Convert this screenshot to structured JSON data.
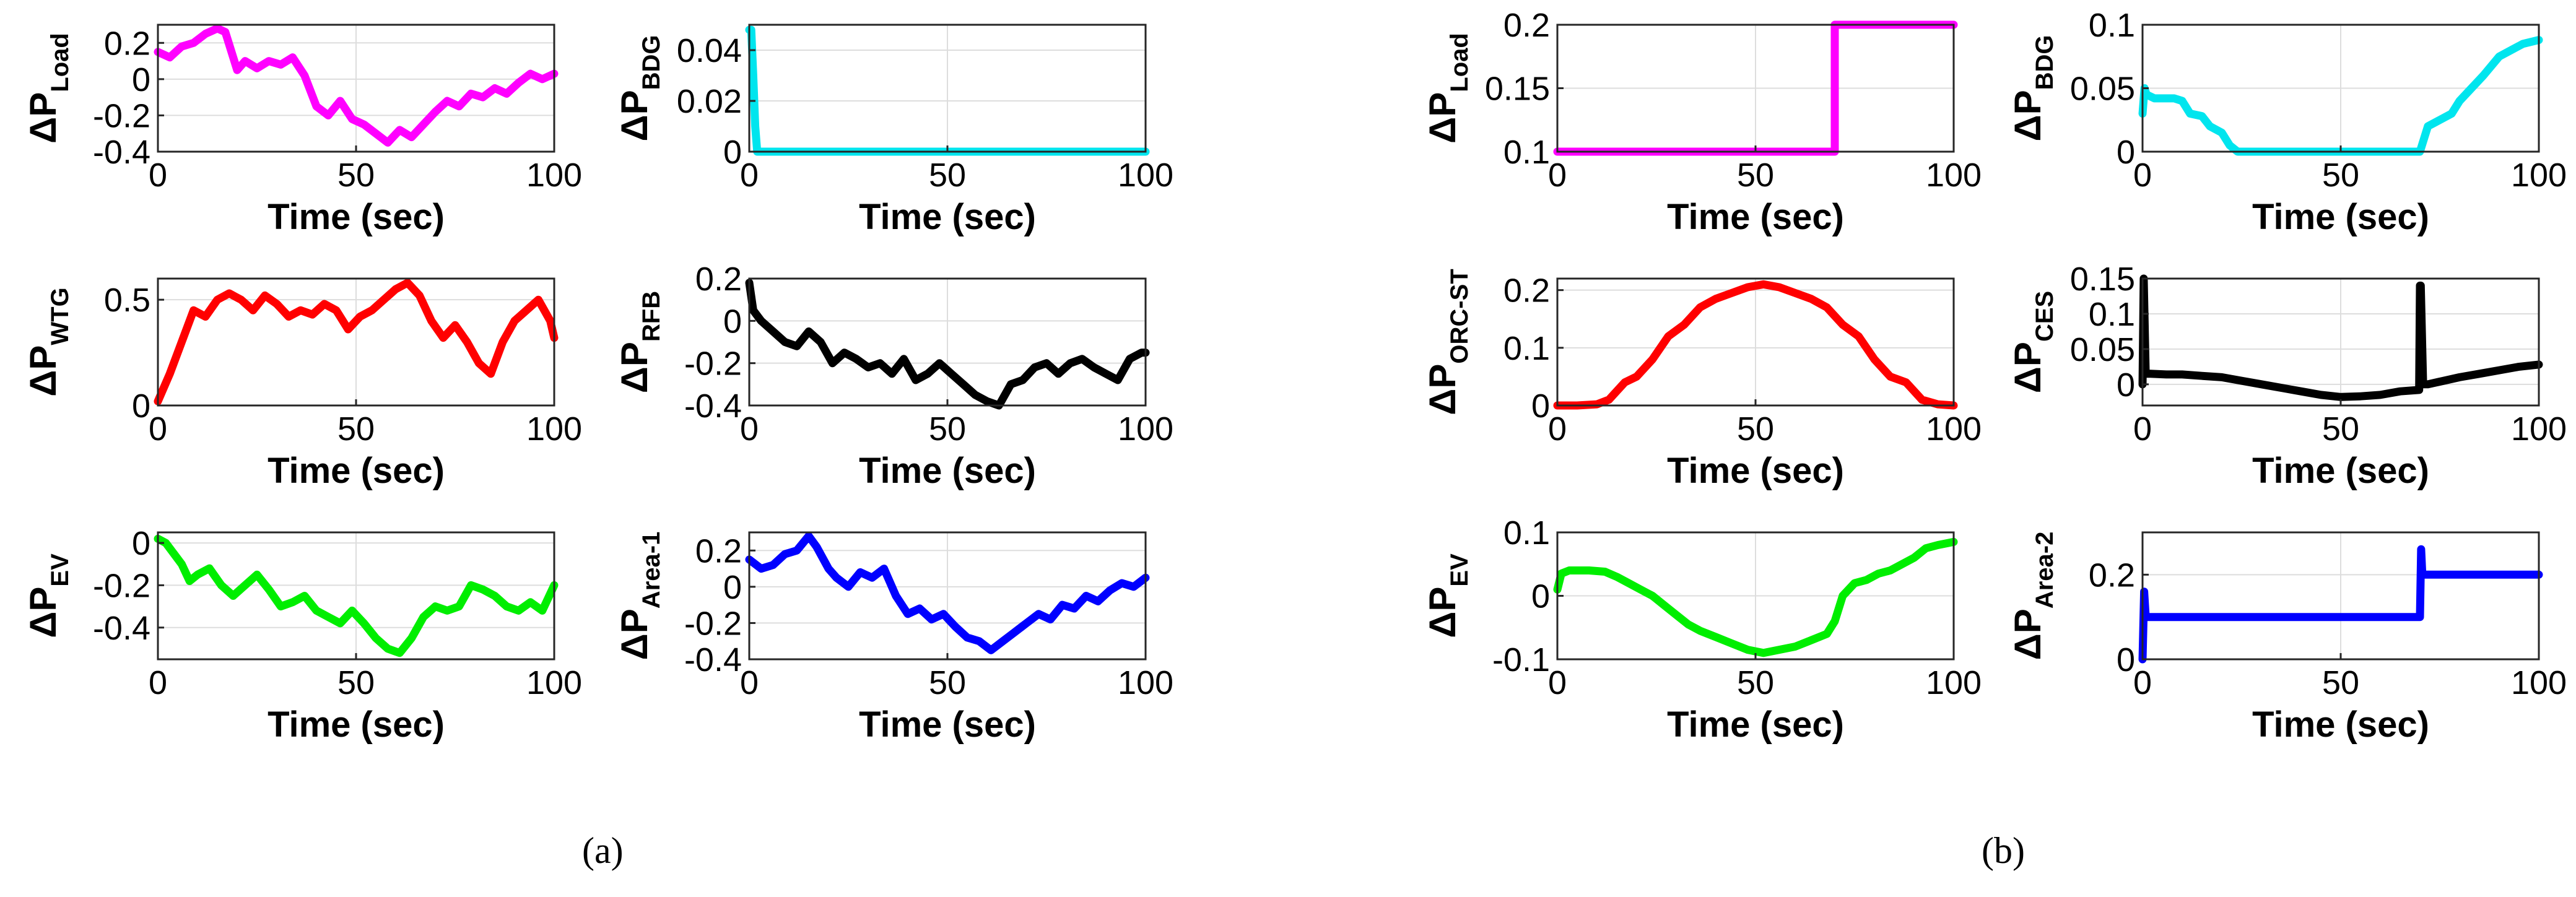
{
  "panel_labels": {
    "a": "(a)",
    "b": "(b)"
  },
  "chart_data": [
    {
      "id": "a1",
      "type": "line",
      "title": "",
      "color": "#ff00ff",
      "ylabel_main": "ΔP",
      "ylabel_sub": "Load",
      "xlabel": "Time (sec)",
      "xlim": [
        0,
        100
      ],
      "ylim": [
        -0.4,
        0.3
      ],
      "xticks": [
        "0",
        "50",
        "100"
      ],
      "xtick_values": [
        0,
        50,
        100
      ],
      "yticks": [
        "0.2",
        "0",
        "-0.2",
        "-0.4"
      ],
      "ytick_values": [
        0.2,
        0,
        -0.2,
        -0.4
      ],
      "x": [
        0,
        3,
        6,
        9,
        12,
        15,
        17,
        20,
        22,
        25,
        28,
        31,
        34,
        37,
        40,
        43,
        46,
        49,
        52,
        55,
        58,
        61,
        64,
        67,
        70,
        73,
        76,
        79,
        82,
        85,
        88,
        91,
        94,
        97,
        100
      ],
      "y": [
        0.15,
        0.12,
        0.18,
        0.2,
        0.25,
        0.28,
        0.26,
        0.05,
        0.1,
        0.06,
        0.1,
        0.08,
        0.12,
        0.02,
        -0.15,
        -0.2,
        -0.12,
        -0.22,
        -0.25,
        -0.3,
        -0.35,
        -0.28,
        -0.32,
        -0.25,
        -0.18,
        -0.12,
        -0.15,
        -0.08,
        -0.1,
        -0.05,
        -0.08,
        -0.02,
        0.03,
        0.0,
        0.03
      ]
    },
    {
      "id": "a2",
      "type": "line",
      "title": "",
      "color": "#00e5ee",
      "ylabel_main": "ΔP",
      "ylabel_sub": "BDG",
      "xlabel": "Time (sec)",
      "xlim": [
        0,
        100
      ],
      "ylim": [
        0,
        0.05
      ],
      "xticks": [
        "0",
        "50",
        "100"
      ],
      "xtick_values": [
        0,
        50,
        100
      ],
      "yticks": [
        "0.04",
        "0.02",
        "0"
      ],
      "ytick_values": [
        0.04,
        0.02,
        0
      ],
      "x": [
        0,
        0.5,
        1,
        1.5,
        2,
        100
      ],
      "y": [
        0.048,
        0.048,
        0.03,
        0.01,
        0,
        0
      ]
    },
    {
      "id": "a3",
      "type": "line",
      "title": "",
      "color": "#ff0000",
      "ylabel_main": "ΔP",
      "ylabel_sub": "WTG",
      "xlabel": "Time (sec)",
      "xlim": [
        0,
        100
      ],
      "ylim": [
        0,
        0.6
      ],
      "xticks": [
        "0",
        "50",
        "100"
      ],
      "xtick_values": [
        0,
        50,
        100
      ],
      "yticks": [
        "0.5",
        "0"
      ],
      "ytick_values": [
        0.5,
        0
      ],
      "x": [
        0,
        3,
        6,
        9,
        12,
        15,
        18,
        21,
        24,
        27,
        30,
        33,
        36,
        39,
        42,
        45,
        48,
        51,
        54,
        57,
        60,
        63,
        66,
        69,
        72,
        75,
        78,
        81,
        84,
        87,
        90,
        93,
        96,
        99,
        100
      ],
      "y": [
        0.02,
        0.15,
        0.3,
        0.45,
        0.42,
        0.5,
        0.53,
        0.5,
        0.45,
        0.52,
        0.48,
        0.42,
        0.45,
        0.43,
        0.48,
        0.45,
        0.36,
        0.42,
        0.45,
        0.5,
        0.55,
        0.58,
        0.52,
        0.4,
        0.32,
        0.38,
        0.3,
        0.2,
        0.15,
        0.3,
        0.4,
        0.45,
        0.5,
        0.4,
        0.32
      ]
    },
    {
      "id": "a4",
      "type": "line",
      "title": "",
      "color": "#000000",
      "ylabel_main": "ΔP",
      "ylabel_sub": "RFB",
      "xlabel": "Time (sec)",
      "xlim": [
        0,
        100
      ],
      "ylim": [
        -0.4,
        0.2
      ],
      "xticks": [
        "0",
        "50",
        "100"
      ],
      "xtick_values": [
        0,
        50,
        100
      ],
      "yticks": [
        "0.2",
        "0",
        "-0.2",
        "-0.4"
      ],
      "ytick_values": [
        0.2,
        0,
        -0.2,
        -0.4
      ],
      "x": [
        0,
        1,
        3,
        6,
        9,
        12,
        15,
        18,
        21,
        24,
        27,
        30,
        33,
        36,
        39,
        42,
        45,
        48,
        51,
        54,
        57,
        60,
        63,
        66,
        69,
        72,
        75,
        78,
        81,
        84,
        87,
        90,
        93,
        96,
        99,
        100
      ],
      "y": [
        0.18,
        0.05,
        0.0,
        -0.05,
        -0.1,
        -0.12,
        -0.05,
        -0.1,
        -0.2,
        -0.15,
        -0.18,
        -0.22,
        -0.2,
        -0.25,
        -0.18,
        -0.28,
        -0.25,
        -0.2,
        -0.25,
        -0.3,
        -0.35,
        -0.38,
        -0.4,
        -0.3,
        -0.28,
        -0.22,
        -0.2,
        -0.25,
        -0.2,
        -0.18,
        -0.22,
        -0.25,
        -0.28,
        -0.18,
        -0.15,
        -0.15
      ]
    },
    {
      "id": "a5",
      "type": "line",
      "title": "",
      "color": "#00ee00",
      "ylabel_main": "ΔP",
      "ylabel_sub": "EV",
      "xlabel": "Time (sec)",
      "xlim": [
        0,
        100
      ],
      "ylim": [
        -0.55,
        0.05
      ],
      "xticks": [
        "0",
        "50",
        "100"
      ],
      "xtick_values": [
        0,
        50,
        100
      ],
      "yticks": [
        "0",
        "-0.2",
        "-0.4"
      ],
      "ytick_values": [
        0,
        -0.2,
        -0.4
      ],
      "x": [
        0,
        2,
        4,
        6,
        8,
        10,
        13,
        16,
        19,
        22,
        25,
        28,
        31,
        34,
        37,
        40,
        43,
        46,
        49,
        52,
        55,
        58,
        61,
        64,
        67,
        70,
        73,
        76,
        79,
        82,
        85,
        88,
        91,
        94,
        97,
        100
      ],
      "y": [
        0.02,
        0.0,
        -0.05,
        -0.1,
        -0.18,
        -0.15,
        -0.12,
        -0.2,
        -0.25,
        -0.2,
        -0.15,
        -0.22,
        -0.3,
        -0.28,
        -0.25,
        -0.32,
        -0.35,
        -0.38,
        -0.32,
        -0.38,
        -0.45,
        -0.5,
        -0.52,
        -0.45,
        -0.35,
        -0.3,
        -0.32,
        -0.3,
        -0.2,
        -0.22,
        -0.25,
        -0.3,
        -0.32,
        -0.28,
        -0.32,
        -0.2
      ]
    },
    {
      "id": "a6",
      "type": "line",
      "title": "",
      "color": "#0000ff",
      "ylabel_main": "ΔP",
      "ylabel_sub": "Area-1",
      "xlabel": "Time (sec)",
      "xlim": [
        0,
        100
      ],
      "ylim": [
        -0.4,
        0.3
      ],
      "xticks": [
        "0",
        "50",
        "100"
      ],
      "xtick_values": [
        0,
        50,
        100
      ],
      "yticks": [
        "0.2",
        "0",
        "-0.2",
        "-0.4"
      ],
      "ytick_values": [
        0.2,
        0,
        -0.2,
        -0.4
      ],
      "x": [
        0,
        3,
        6,
        9,
        12,
        15,
        17,
        20,
        22,
        25,
        28,
        31,
        34,
        37,
        40,
        43,
        46,
        49,
        52,
        55,
        58,
        61,
        64,
        67,
        70,
        73,
        76,
        79,
        82,
        85,
        88,
        91,
        94,
        97,
        100
      ],
      "y": [
        0.15,
        0.1,
        0.12,
        0.18,
        0.2,
        0.28,
        0.22,
        0.1,
        0.05,
        0.0,
        0.08,
        0.05,
        0.1,
        -0.05,
        -0.15,
        -0.12,
        -0.18,
        -0.15,
        -0.22,
        -0.28,
        -0.3,
        -0.35,
        -0.3,
        -0.25,
        -0.2,
        -0.15,
        -0.18,
        -0.1,
        -0.12,
        -0.05,
        -0.08,
        -0.02,
        0.02,
        0.0,
        0.05
      ]
    },
    {
      "id": "b1",
      "type": "line",
      "title": "",
      "color": "#ff00ff",
      "ylabel_main": "ΔP",
      "ylabel_sub": "Load",
      "xlabel": "Time (sec)",
      "xlim": [
        0,
        100
      ],
      "ylim": [
        0.1,
        0.2
      ],
      "xticks": [
        "0",
        "50",
        "100"
      ],
      "xtick_values": [
        0,
        50,
        100
      ],
      "yticks": [
        "0.2",
        "0.15",
        "0.1"
      ],
      "ytick_values": [
        0.2,
        0.15,
        0.1
      ],
      "x": [
        0,
        70,
        70,
        100
      ],
      "y": [
        0.1,
        0.1,
        0.2,
        0.2
      ]
    },
    {
      "id": "b2",
      "type": "line",
      "title": "",
      "color": "#00e5ee",
      "ylabel_main": "ΔP",
      "ylabel_sub": "BDG",
      "xlabel": "Time (sec)",
      "xlim": [
        0,
        100
      ],
      "ylim": [
        0,
        0.1
      ],
      "xticks": [
        "0",
        "50",
        "100"
      ],
      "xtick_values": [
        0,
        50,
        100
      ],
      "yticks": [
        "0.1",
        "0.05",
        "0"
      ],
      "ytick_values": [
        0.1,
        0.05,
        0
      ],
      "x": [
        0,
        0.5,
        1,
        3,
        8,
        10,
        12,
        15,
        17,
        20,
        22,
        24,
        30,
        70,
        71,
        72,
        75,
        78,
        80,
        83,
        86,
        90,
        93,
        96,
        100
      ],
      "y": [
        0.03,
        0.05,
        0.045,
        0.042,
        0.042,
        0.04,
        0.03,
        0.028,
        0.02,
        0.015,
        0.005,
        0,
        0,
        0,
        0.01,
        0.02,
        0.025,
        0.03,
        0.04,
        0.05,
        0.06,
        0.075,
        0.08,
        0.085,
        0.088
      ]
    },
    {
      "id": "b3",
      "type": "line",
      "title": "",
      "color": "#ff0000",
      "ylabel_main": "ΔP",
      "ylabel_sub": "ORC-ST",
      "xlabel": "Time (sec)",
      "xlim": [
        0,
        100
      ],
      "ylim": [
        0,
        0.22
      ],
      "xticks": [
        "0",
        "50",
        "100"
      ],
      "xtick_values": [
        0,
        50,
        100
      ],
      "yticks": [
        "0.2",
        "0.1",
        "0"
      ],
      "ytick_values": [
        0.2,
        0.1,
        0
      ],
      "x": [
        0,
        5,
        10,
        13,
        17,
        20,
        24,
        28,
        32,
        36,
        40,
        44,
        48,
        52,
        56,
        60,
        64,
        68,
        72,
        76,
        80,
        84,
        88,
        92,
        96,
        100
      ],
      "y": [
        0,
        0,
        0.002,
        0.01,
        0.04,
        0.05,
        0.08,
        0.12,
        0.14,
        0.17,
        0.185,
        0.195,
        0.205,
        0.21,
        0.205,
        0.195,
        0.185,
        0.17,
        0.14,
        0.12,
        0.08,
        0.05,
        0.04,
        0.01,
        0.002,
        0
      ]
    },
    {
      "id": "b4",
      "type": "line",
      "title": "",
      "color": "#000000",
      "ylabel_main": "ΔP",
      "ylabel_sub": "CES",
      "xlabel": "Time (sec)",
      "xlim": [
        0,
        100
      ],
      "ylim": [
        -0.03,
        0.15
      ],
      "xticks": [
        "0",
        "50",
        "100"
      ],
      "xtick_values": [
        0,
        50,
        100
      ],
      "yticks": [
        "0.15",
        "0.1",
        "0.05",
        "0"
      ],
      "ytick_values": [
        0.15,
        0.1,
        0.05,
        0
      ],
      "x": [
        0,
        0.3,
        0.8,
        2,
        6,
        10,
        15,
        20,
        25,
        30,
        35,
        40,
        45,
        50,
        55,
        60,
        65,
        69.8,
        70,
        70.2,
        70.8,
        72,
        76,
        80,
        85,
        90,
        95,
        100
      ],
      "y": [
        0,
        0.15,
        0.015,
        0.015,
        0.014,
        0.014,
        0.012,
        0.01,
        0.005,
        0,
        -0.005,
        -0.01,
        -0.015,
        -0.018,
        -0.017,
        -0.015,
        -0.01,
        -0.008,
        0.14,
        0.14,
        0.0,
        0.0,
        0.005,
        0.01,
        0.015,
        0.02,
        0.025,
        0.028
      ]
    },
    {
      "id": "b5",
      "type": "line",
      "title": "",
      "color": "#00ee00",
      "ylabel_main": "ΔP",
      "ylabel_sub": "EV",
      "xlabel": "Time (sec)",
      "xlim": [
        0,
        100
      ],
      "ylim": [
        -0.1,
        0.1
      ],
      "xticks": [
        "0",
        "50",
        "100"
      ],
      "xtick_values": [
        0,
        50,
        100
      ],
      "yticks": [
        "0.1",
        "0",
        "-0.1"
      ],
      "ytick_values": [
        0.1,
        0,
        -0.1
      ],
      "x": [
        0,
        1,
        3,
        8,
        12,
        15,
        18,
        21,
        24,
        27,
        30,
        33,
        36,
        40,
        44,
        48,
        52,
        56,
        60,
        64,
        68,
        70,
        71,
        72,
        75,
        78,
        81,
        84,
        87,
        90,
        93,
        96,
        100
      ],
      "y": [
        0.01,
        0.035,
        0.04,
        0.04,
        0.038,
        0.03,
        0.02,
        0.01,
        0,
        -0.015,
        -0.03,
        -0.045,
        -0.055,
        -0.065,
        -0.075,
        -0.085,
        -0.09,
        -0.085,
        -0.08,
        -0.07,
        -0.06,
        -0.04,
        -0.02,
        0,
        0.02,
        0.025,
        0.035,
        0.04,
        0.05,
        0.06,
        0.075,
        0.08,
        0.085
      ]
    },
    {
      "id": "b6",
      "type": "line",
      "title": "",
      "color": "#0000ff",
      "ylabel_main": "ΔP",
      "ylabel_sub": "Area-2",
      "xlabel": "Time (sec)",
      "xlim": [
        0,
        100
      ],
      "ylim": [
        0,
        0.3
      ],
      "xticks": [
        "0",
        "50",
        "100"
      ],
      "xtick_values": [
        0,
        50,
        100
      ],
      "yticks": [
        "0.2",
        "0"
      ],
      "ytick_values": [
        0.2,
        0
      ],
      "x": [
        0,
        0.4,
        0.8,
        70,
        70.3,
        70.6,
        100
      ],
      "y": [
        0,
        0.16,
        0.1,
        0.1,
        0.26,
        0.2,
        0.2
      ]
    }
  ]
}
